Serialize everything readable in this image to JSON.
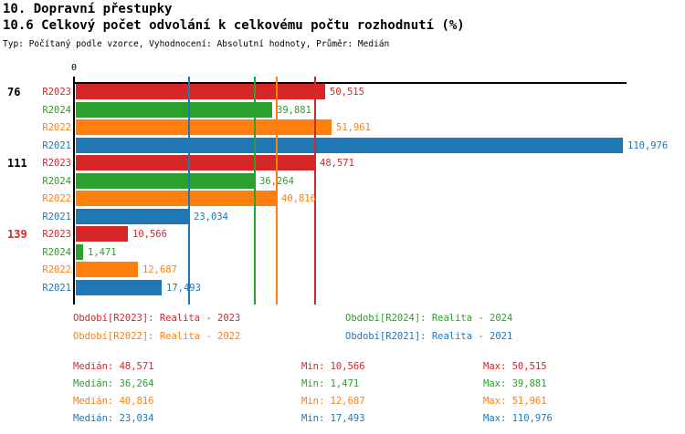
{
  "header": {
    "title": "10. Dopravní přestupky",
    "subtitle": "10.6 Celkový počet odvolání k celkovému počtu rozhodnutí (%)",
    "meta": "Typ: Počítaný podle vzorce, Vyhodnocení: Absolutní hodnoty, Průměr: Medián"
  },
  "colors": {
    "R2023": "#d62728",
    "R2024": "#2ca02c",
    "R2022": "#ff7f0e",
    "R2021": "#1f77b4",
    "axis": "#000000"
  },
  "chart_data": {
    "type": "bar",
    "orientation": "horizontal",
    "title": "10.6 Celkový počet odvolání k celkovému počtu rozhodnutí (%)",
    "x_axis": {
      "origin_label": "0",
      "xlim": [
        0,
        112000
      ],
      "grid": false
    },
    "legend_position": "bottom",
    "categories": [
      "76",
      "111",
      "139"
    ],
    "series": [
      {
        "name": "R2023",
        "color": "#d62728",
        "values": [
          50515,
          48571,
          10566
        ]
      },
      {
        "name": "R2024",
        "color": "#2ca02c",
        "values": [
          39881,
          36264,
          1471
        ]
      },
      {
        "name": "R2022",
        "color": "#ff7f0e",
        "values": [
          51961,
          40816,
          12687
        ]
      },
      {
        "name": "R2021",
        "color": "#1f77b4",
        "values": [
          110976,
          23034,
          17493
        ]
      }
    ],
    "groups": [
      {
        "label": "76",
        "label_color": "#000000",
        "bars": [
          {
            "series": "R2023",
            "value": 50515,
            "display": "50,515"
          },
          {
            "series": "R2024",
            "value": 39881,
            "display": "39,881"
          },
          {
            "series": "R2022",
            "value": 51961,
            "display": "51,961"
          },
          {
            "series": "R2021",
            "value": 110976,
            "display": "110,976"
          }
        ]
      },
      {
        "label": "111",
        "label_color": "#000000",
        "bars": [
          {
            "series": "R2023",
            "value": 48571,
            "display": "48,571"
          },
          {
            "series": "R2024",
            "value": 36264,
            "display": "36,264"
          },
          {
            "series": "R2022",
            "value": 40816,
            "display": "40,816"
          },
          {
            "series": "R2021",
            "value": 23034,
            "display": "23,034"
          }
        ]
      },
      {
        "label": "139",
        "label_color": "#d62728",
        "bars": [
          {
            "series": "R2023",
            "value": 10566,
            "display": "10,566"
          },
          {
            "series": "R2024",
            "value": 1471,
            "display": "1,471"
          },
          {
            "series": "R2022",
            "value": 12687,
            "display": "12,687"
          },
          {
            "series": "R2021",
            "value": 17493,
            "display": "17,493"
          }
        ]
      }
    ],
    "median_lines": [
      {
        "series": "R2023",
        "value": 48571
      },
      {
        "series": "R2024",
        "value": 36264
      },
      {
        "series": "R2022",
        "value": 40816
      },
      {
        "series": "R2021",
        "value": 23034
      }
    ],
    "legend": [
      {
        "series": "R2023",
        "label": "Období[R2023]: Realita - 2023"
      },
      {
        "series": "R2024",
        "label": "Období[R2024]: Realita - 2024"
      },
      {
        "series": "R2022",
        "label": "Období[R2022]: Realita - 2022"
      },
      {
        "series": "R2021",
        "label": "Období[R2021]: Realita - 2021"
      }
    ],
    "stats": [
      {
        "series": "R2023",
        "median": "Medián: 48,571",
        "min": "Min: 10,566",
        "max": "Max: 50,515"
      },
      {
        "series": "R2024",
        "median": "Medián: 36,264",
        "min": "Min: 1,471",
        "max": "Max: 39,881"
      },
      {
        "series": "R2022",
        "median": "Medián: 40,816",
        "min": "Min: 12,687",
        "max": "Max: 51,961"
      },
      {
        "series": "R2021",
        "median": "Medián: 23,034",
        "min": "Min: 17,493",
        "max": "Max: 110,976"
      }
    ]
  }
}
